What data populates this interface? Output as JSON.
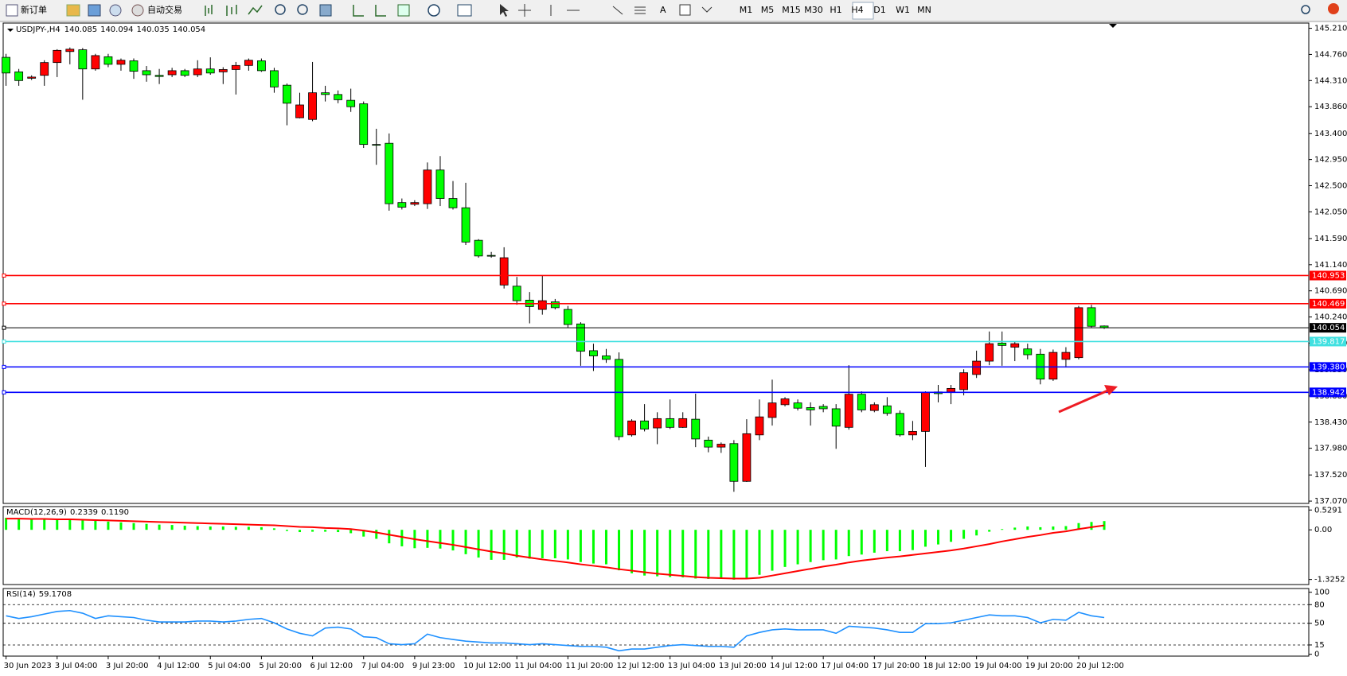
{
  "toolbar": {
    "new_order": "新订单",
    "auto_trading": "自动交易",
    "text_tool": "A",
    "timeframes": [
      "M1",
      "M5",
      "M15",
      "M30",
      "H1",
      "H4",
      "D1",
      "W1",
      "MN"
    ]
  },
  "chart_data": {
    "type": "candlestick",
    "symbol": "USDJPY-,H4",
    "categories": [
      "30 Jun 2023",
      null,
      null,
      null,
      "3 Jul 04:00",
      null,
      null,
      null,
      "3 Jul 20:00",
      null,
      null,
      null,
      "4 Jul 12:00",
      null,
      null,
      null,
      "5 Jul 04:00",
      null,
      null,
      null,
      "5 Jul 20:00",
      null,
      null,
      null,
      "6 Jul 12:00",
      null,
      null,
      null,
      "7 Jul 04:00",
      null,
      null,
      null,
      "9 Jul 23:00",
      null,
      null,
      null,
      "10 Jul 12:00",
      null,
      null,
      null,
      "11 Jul 04:00",
      null,
      null,
      null,
      "11 Jul 20:00",
      null,
      null,
      null,
      "12 Jul 12:00",
      null,
      null,
      null,
      "13 Jul 04:00",
      null,
      null,
      null,
      "13 Jul 20:00",
      null,
      null,
      null,
      "14 Jul 12:00",
      null,
      null,
      null,
      "17 Jul 04:00",
      null,
      null,
      null,
      "17 Jul 20:00",
      null,
      null,
      null,
      "18 Jul 12:00",
      null,
      null,
      null,
      "19 Jul 04:00",
      null,
      null,
      null,
      "19 Jul 20:00",
      null,
      null,
      null,
      "20 Jul 12:00",
      null,
      null
    ],
    "open": [
      144.71,
      144.46,
      144.35,
      144.4,
      144.62,
      144.81,
      144.84,
      144.51,
      144.72,
      144.59,
      144.65,
      144.48,
      144.4,
      144.41,
      144.48,
      144.41,
      144.51,
      144.46,
      144.5,
      144.57,
      144.65,
      144.48,
      144.23,
      143.67,
      143.64,
      144.1,
      144.07,
      143.97,
      143.91,
      143.21,
      143.23,
      142.21,
      142.18,
      142.19,
      142.77,
      142.28,
      142.12,
      141.56,
      141.3,
      140.79,
      140.77,
      140.53,
      140.37,
      140.5,
      140.37,
      140.12,
      139.66,
      139.57,
      139.51,
      138.21,
      138.45,
      138.33,
      138.49,
      138.34,
      138.48,
      138.12,
      138.0,
      138.06,
      137.41,
      138.21,
      138.51,
      138.73,
      138.76,
      138.68,
      138.7,
      138.66,
      138.34,
      138.91,
      138.63,
      138.71,
      138.58,
      138.21,
      138.27,
      138.95,
      138.95,
      138.99,
      139.25,
      139.48,
      139.79,
      139.72,
      139.69,
      139.6,
      139.17,
      139.51,
      139.54,
      140.4,
      140.085
    ],
    "high": [
      144.77,
      144.51,
      144.4,
      144.66,
      144.85,
      144.88,
      144.87,
      144.77,
      144.77,
      144.69,
      144.69,
      144.56,
      144.51,
      144.53,
      144.51,
      144.66,
      144.71,
      144.54,
      144.63,
      144.69,
      144.69,
      144.53,
      144.26,
      144.1,
      144.63,
      144.22,
      144.14,
      144.17,
      143.95,
      143.48,
      143.4,
      142.28,
      142.25,
      142.9,
      143.01,
      142.58,
      142.55,
      141.58,
      141.36,
      141.44,
      140.93,
      140.67,
      140.96,
      140.55,
      140.43,
      140.15,
      139.78,
      139.69,
      139.63,
      138.48,
      138.74,
      138.6,
      138.82,
      138.6,
      138.92,
      138.18,
      138.08,
      138.12,
      138.48,
      138.82,
      139.16,
      138.86,
      138.82,
      138.77,
      138.74,
      138.74,
      139.41,
      138.96,
      138.77,
      138.86,
      138.63,
      138.45,
      138.96,
      139.07,
      139.07,
      139.34,
      139.66,
      139.99,
      139.99,
      139.82,
      139.78,
      139.69,
      139.68,
      139.72,
      140.43,
      140.45,
      140.094
    ],
    "low": [
      144.22,
      144.22,
      144.32,
      144.22,
      144.37,
      144.59,
      143.98,
      144.48,
      144.54,
      144.48,
      144.34,
      144.29,
      144.25,
      144.37,
      144.37,
      144.37,
      144.41,
      144.25,
      144.07,
      144.48,
      144.46,
      144.1,
      143.54,
      143.66,
      143.61,
      143.95,
      143.92,
      143.77,
      143.15,
      142.86,
      142.07,
      142.09,
      142.15,
      142.1,
      142.15,
      142.09,
      141.48,
      141.26,
      141.26,
      140.73,
      140.45,
      140.13,
      140.28,
      140.37,
      140.05,
      139.4,
      139.31,
      139.45,
      138.12,
      138.18,
      138.27,
      138.05,
      138.31,
      138.33,
      138.0,
      137.91,
      137.9,
      137.23,
      137.4,
      138.12,
      138.37,
      138.7,
      138.63,
      138.37,
      138.6,
      137.97,
      138.3,
      138.6,
      138.6,
      138.54,
      138.18,
      138.12,
      137.66,
      138.77,
      138.74,
      138.89,
      139.19,
      139.41,
      139.4,
      139.48,
      139.51,
      139.08,
      139.14,
      139.37,
      139.51,
      140.05,
      140.035
    ],
    "close": [
      144.44,
      144.31,
      144.37,
      144.62,
      144.83,
      144.85,
      144.51,
      144.74,
      144.59,
      144.66,
      144.47,
      144.41,
      144.38,
      144.48,
      144.4,
      144.51,
      144.44,
      144.5,
      144.57,
      144.66,
      144.48,
      144.2,
      143.92,
      143.89,
      144.1,
      144.07,
      143.98,
      143.86,
      143.21,
      143.2,
      142.19,
      142.13,
      142.21,
      142.77,
      142.28,
      142.12,
      141.53,
      141.29,
      141.29,
      141.26,
      140.52,
      140.42,
      140.52,
      140.4,
      140.11,
      139.65,
      139.57,
      139.51,
      138.18,
      138.45,
      138.31,
      138.49,
      138.34,
      138.49,
      138.14,
      138.0,
      138.05,
      137.41,
      138.23,
      138.52,
      138.76,
      138.83,
      138.67,
      138.64,
      138.66,
      138.36,
      138.91,
      138.64,
      138.73,
      138.58,
      138.21,
      138.27,
      138.94,
      138.92,
      139.01,
      139.28,
      139.48,
      139.78,
      139.75,
      139.78,
      139.59,
      139.17,
      139.63,
      139.63,
      140.4,
      140.08,
      140.054
    ],
    "up_color": "#ff0000",
    "down_color": "#00ff00",
    "ylim": [
      137.03,
      145.3
    ],
    "yticks": [
      {
        "value": 145.21,
        "label": "145.210"
      },
      {
        "value": 144.76,
        "label": "144.760"
      },
      {
        "value": 144.31,
        "label": "144.310"
      },
      {
        "value": 143.86,
        "label": "143.860"
      },
      {
        "value": 143.4,
        "label": "143.400"
      },
      {
        "value": 142.95,
        "label": "142.950"
      },
      {
        "value": 142.5,
        "label": "142.500"
      },
      {
        "value": 142.05,
        "label": "142.050"
      },
      {
        "value": 141.59,
        "label": "141.590"
      },
      {
        "value": 141.14,
        "label": "141.140"
      },
      {
        "value": 140.69,
        "label": "140.690"
      },
      {
        "value": 140.24,
        "label": "140.240"
      },
      {
        "value": 139.79,
        "label": "139.790"
      },
      {
        "value": 139.33,
        "label": "139.330"
      },
      {
        "value": 138.88,
        "label": "138.880"
      },
      {
        "value": 138.43,
        "label": "138.430"
      },
      {
        "value": 137.98,
        "label": "137.980"
      },
      {
        "value": 137.52,
        "label": "137.520"
      },
      {
        "value": 137.07,
        "label": "137.070"
      }
    ],
    "levels": [
      {
        "value": 140.953,
        "label": "140.953",
        "color": "#ff0000"
      },
      {
        "value": 140.469,
        "label": "140.469",
        "color": "#ff0000"
      },
      {
        "value": 140.054,
        "label": "140.054",
        "color": "#000000"
      },
      {
        "value": 139.817,
        "label": "139.817",
        "color": "#40e0e0"
      },
      {
        "value": 139.38,
        "label": "139.380",
        "color": "#0000ff"
      },
      {
        "value": 138.942,
        "label": "138.942",
        "color": "#0000ff"
      }
    ],
    "macd": {
      "label": "MACD(12,26,9)",
      "signal_label": "0.1190",
      "hist_color": "#00ff00",
      "signal_color": "#ff0000",
      "histogram": [
        0.32,
        0.3,
        0.29,
        0.28,
        0.28,
        0.28,
        0.25,
        0.24,
        0.22,
        0.2,
        0.18,
        0.16,
        0.14,
        0.13,
        0.11,
        0.1,
        0.09,
        0.09,
        0.08,
        0.08,
        0.07,
        0.04,
        -0.03,
        -0.06,
        -0.05,
        -0.05,
        -0.06,
        -0.09,
        -0.18,
        -0.24,
        -0.36,
        -0.44,
        -0.49,
        -0.48,
        -0.5,
        -0.55,
        -0.65,
        -0.74,
        -0.8,
        -0.8,
        -0.74,
        -0.77,
        -0.76,
        -0.76,
        -0.79,
        -0.86,
        -0.9,
        -0.92,
        -1.08,
        -1.16,
        -1.22,
        -1.24,
        -1.26,
        -1.27,
        -1.3,
        -1.31,
        -1.3,
        -1.33,
        -1.28,
        -1.2,
        -1.09,
        -0.99,
        -0.92,
        -0.86,
        -0.81,
        -0.79,
        -0.7,
        -0.66,
        -0.61,
        -0.57,
        -0.57,
        -0.54,
        -0.45,
        -0.39,
        -0.32,
        -0.24,
        -0.15,
        -0.05,
        0.02,
        0.06,
        0.09,
        0.07,
        0.09,
        0.1,
        0.18,
        0.21,
        0.2339
      ],
      "signal": [
        0.3,
        0.3,
        0.29,
        0.29,
        0.28,
        0.28,
        0.27,
        0.26,
        0.25,
        0.24,
        0.23,
        0.22,
        0.21,
        0.2,
        0.19,
        0.18,
        0.17,
        0.16,
        0.15,
        0.14,
        0.13,
        0.12,
        0.1,
        0.08,
        0.07,
        0.05,
        0.04,
        0.02,
        -0.02,
        -0.07,
        -0.13,
        -0.19,
        -0.25,
        -0.3,
        -0.35,
        -0.4,
        -0.46,
        -0.52,
        -0.58,
        -0.63,
        -0.69,
        -0.74,
        -0.79,
        -0.83,
        -0.87,
        -0.92,
        -0.96,
        -1.0,
        -1.05,
        -1.09,
        -1.13,
        -1.17,
        -1.2,
        -1.23,
        -1.26,
        -1.28,
        -1.29,
        -1.3,
        -1.3,
        -1.28,
        -1.22,
        -1.16,
        -1.1,
        -1.04,
        -0.98,
        -0.93,
        -0.87,
        -0.82,
        -0.78,
        -0.74,
        -0.71,
        -0.67,
        -0.63,
        -0.59,
        -0.55,
        -0.5,
        -0.44,
        -0.38,
        -0.31,
        -0.25,
        -0.19,
        -0.14,
        -0.08,
        -0.04,
        0.02,
        0.07,
        0.119
      ],
      "ylim": [
        -1.46,
        0.62
      ],
      "yticks": [
        0.5291,
        {
          "value": 0,
          "label": "0.00"
        },
        -1.3252
      ]
    },
    "rsi": {
      "label": "RSI(14)",
      "color": "#1e90ff",
      "values": [
        62.0,
        57.7,
        60.6,
        64.8,
        69.0,
        70.4,
        66.2,
        57.7,
        62.0,
        60.6,
        59.2,
        54.9,
        52.1,
        52.1,
        52.1,
        53.5,
        53.5,
        52.1,
        53.5,
        56.3,
        57.7,
        50.7,
        40.8,
        33.8,
        29.6,
        42.3,
        43.7,
        40.8,
        28.2,
        26.8,
        16.9,
        15.5,
        16.9,
        32.4,
        26.8,
        23.9,
        21.1,
        19.7,
        18.3,
        18.3,
        16.9,
        15.5,
        16.9,
        15.5,
        14.1,
        12.7,
        12.7,
        11.3,
        5.6,
        8.5,
        8.5,
        11.3,
        14.1,
        15.5,
        14.1,
        12.7,
        12.7,
        11.3,
        29.6,
        35.2,
        39.4,
        40.8,
        39.4,
        39.4,
        39.4,
        33.8,
        45.1,
        43.7,
        42.3,
        39.4,
        35.2,
        35.2,
        49.3,
        49.3,
        50.7,
        54.9,
        59.2,
        63.4,
        62.0,
        62.0,
        59.2,
        50.7,
        56.3,
        54.9,
        67.6,
        62.0,
        59.1708
      ],
      "ylim": [
        -3,
        106
      ],
      "yticks": [
        100,
        80,
        50,
        15,
        0
      ],
      "dashed_levels": [
        80,
        50,
        15
      ]
    }
  }
}
